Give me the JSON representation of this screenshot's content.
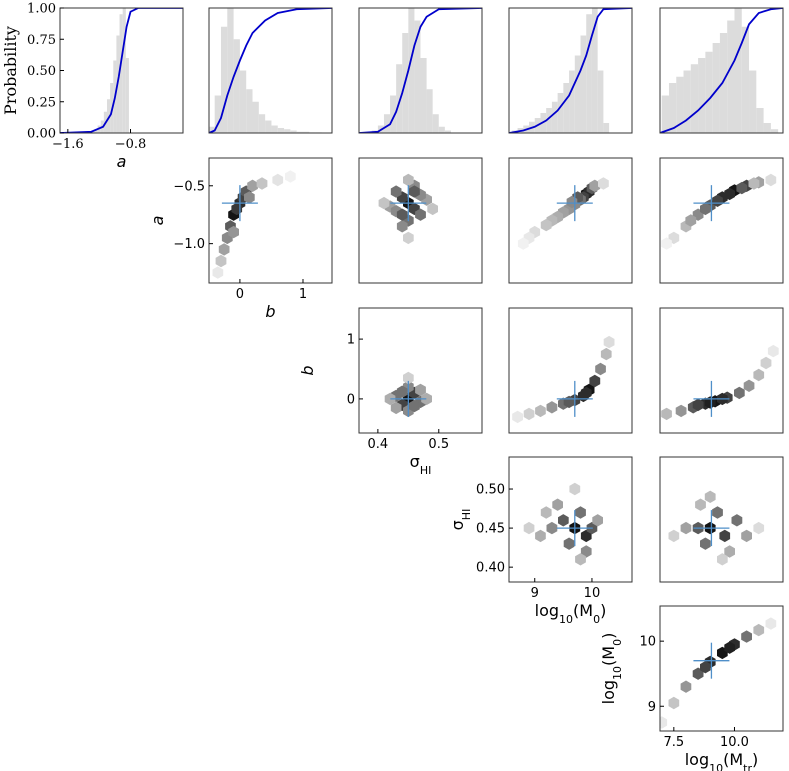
{
  "chart_data": [
    {
      "type": "histogram",
      "color": "#dcdcdc",
      "xlim": [
        -1.7,
        -0.13
      ],
      "ylim": [
        0,
        1
      ],
      "bins": [
        -1.3,
        -1.26,
        -1.22,
        -1.18,
        -1.14,
        -1.1,
        -1.06,
        -1.02,
        -0.98,
        -0.94,
        -0.9,
        -0.86,
        -0.82
      ],
      "counts": [
        0.01,
        0.03,
        0.06,
        0.1,
        0.17,
        0.27,
        0.4,
        0.58,
        0.78,
        0.95,
        1.0,
        0.6
      ],
      "series": [
        {
          "color": "#0000cc",
          "x": [
            -1.7,
            -1.3,
            -1.15,
            -1.05,
            -1.0,
            -0.95,
            -0.9,
            -0.85,
            -0.8,
            -0.7,
            -0.13
          ],
          "values": [
            0,
            0.01,
            0.05,
            0.15,
            0.28,
            0.45,
            0.65,
            0.85,
            0.97,
            1,
            1
          ]
        }
      ],
      "xticks": [
        {
          "value": -1.6,
          "label": "−1.6"
        },
        {
          "value": -0.8,
          "label": "−0.8"
        }
      ],
      "yticks": [
        {
          "value": 0,
          "label": "0.00"
        },
        {
          "value": 0.25,
          "label": "0.25"
        },
        {
          "value": 0.5,
          "label": "0.50"
        },
        {
          "value": 0.75,
          "label": "0.75"
        },
        {
          "value": 1,
          "label": "1.00"
        }
      ],
      "xlabel": "a",
      "ylabel": "Probability"
    },
    {
      "type": "histogram",
      "color": "#dcdcdc",
      "xlim": [
        -0.49,
        1.46
      ],
      "ylim": [
        0,
        1
      ],
      "bins": [
        -0.5,
        -0.4,
        -0.3,
        -0.2,
        -0.1,
        0,
        0.1,
        0.2,
        0.3,
        0.4,
        0.5,
        0.6,
        0.7,
        0.8,
        0.9,
        1.0,
        1.1,
        1.2,
        1.3
      ],
      "counts": [
        0.05,
        0.3,
        0.85,
        1.0,
        0.75,
        0.5,
        0.35,
        0.25,
        0.15,
        0.1,
        0.06,
        0.04,
        0.03,
        0.02,
        0.01,
        0.01,
        0.005,
        0.005
      ],
      "series": [
        {
          "color": "#0000cc",
          "x": [
            -0.49,
            -0.4,
            -0.3,
            -0.2,
            -0.1,
            0,
            0.1,
            0.2,
            0.4,
            0.6,
            0.9,
            1.46
          ],
          "values": [
            0,
            0.02,
            0.12,
            0.3,
            0.45,
            0.58,
            0.7,
            0.8,
            0.9,
            0.96,
            0.99,
            1
          ]
        }
      ]
    },
    {
      "type": "histogram",
      "color": "#dcdcdc",
      "xlim": [
        0.369,
        0.571
      ],
      "ylim": [
        0,
        1
      ],
      "bins": [
        0.39,
        0.4,
        0.41,
        0.42,
        0.43,
        0.44,
        0.45,
        0.46,
        0.47,
        0.48,
        0.49,
        0.5,
        0.51,
        0.52
      ],
      "counts": [
        0.02,
        0.06,
        0.15,
        0.3,
        0.55,
        0.8,
        1.0,
        0.9,
        0.6,
        0.35,
        0.15,
        0.05,
        0.02
      ],
      "series": [
        {
          "color": "#0000cc",
          "x": [
            0.369,
            0.4,
            0.42,
            0.43,
            0.44,
            0.45,
            0.46,
            0.47,
            0.48,
            0.5,
            0.571
          ],
          "values": [
            0,
            0.01,
            0.07,
            0.17,
            0.32,
            0.5,
            0.7,
            0.85,
            0.93,
            0.99,
            1
          ]
        }
      ]
    },
    {
      "type": "histogram",
      "color": "#dcdcdc",
      "xlim": [
        8.55,
        10.7
      ],
      "ylim": [
        0,
        1
      ],
      "bins": [
        8.6,
        8.7,
        8.8,
        8.9,
        9.0,
        9.1,
        9.2,
        9.3,
        9.4,
        9.5,
        9.6,
        9.7,
        9.8,
        9.9,
        10.0,
        10.1,
        10.2,
        10.3
      ],
      "counts": [
        0.02,
        0.04,
        0.06,
        0.09,
        0.12,
        0.16,
        0.2,
        0.25,
        0.32,
        0.4,
        0.5,
        0.62,
        0.78,
        0.95,
        1.0,
        0.5,
        0.08
      ],
      "series": [
        {
          "color": "#0000cc",
          "x": [
            8.55,
            8.8,
            9.0,
            9.2,
            9.4,
            9.6,
            9.8,
            9.9,
            10.0,
            10.1,
            10.2,
            10.7
          ],
          "values": [
            0,
            0.02,
            0.05,
            0.1,
            0.18,
            0.3,
            0.5,
            0.62,
            0.78,
            0.93,
            0.99,
            1
          ]
        }
      ]
    },
    {
      "type": "histogram",
      "color": "#dcdcdc",
      "xlim": [
        6.93,
        12.0
      ],
      "ylim": [
        0,
        1
      ],
      "bins": [
        7.0,
        7.3,
        7.6,
        7.9,
        8.2,
        8.5,
        8.8,
        9.1,
        9.4,
        9.7,
        10.0,
        10.3,
        10.6,
        10.9,
        11.2,
        11.5,
        11.8
      ],
      "counts": [
        0.3,
        0.4,
        0.45,
        0.5,
        0.55,
        0.6,
        0.65,
        0.72,
        0.8,
        0.9,
        1.0,
        0.85,
        0.5,
        0.2,
        0.08,
        0.03
      ],
      "series": [
        {
          "color": "#0000cc",
          "x": [
            6.93,
            7.5,
            8.0,
            8.5,
            9.0,
            9.5,
            10.0,
            10.3,
            10.6,
            11.0,
            11.5,
            12.0
          ],
          "values": [
            0,
            0.04,
            0.1,
            0.18,
            0.28,
            0.4,
            0.58,
            0.72,
            0.87,
            0.96,
            0.99,
            1
          ]
        }
      ]
    },
    {
      "type": "hexbin",
      "truth_color": "#4f8fc9",
      "xlim": [
        -0.49,
        1.46
      ],
      "ylim": [
        -1.34,
        -0.26
      ],
      "truth": [
        0,
        -0.65
      ],
      "x": [
        -0.1,
        0,
        0.05,
        -0.15,
        0.1,
        -0.2,
        -0.25,
        0.2,
        -0.3,
        0.35,
        0.6,
        -0.05,
        0.15,
        -0.1,
        0.8,
        -0.35
      ],
      "y": [
        -0.75,
        -0.65,
        -0.6,
        -0.85,
        -0.55,
        -0.95,
        -1.05,
        -0.5,
        -1.15,
        -0.48,
        -0.45,
        -0.7,
        -0.6,
        -0.9,
        -0.42,
        -1.25
      ],
      "values": [
        1,
        0.9,
        0.8,
        0.7,
        0.7,
        0.5,
        0.4,
        0.4,
        0.25,
        0.25,
        0.12,
        0.85,
        0.5,
        0.45,
        0.06,
        0.1
      ],
      "xticks": [
        0,
        1
      ],
      "yticks": [
        {
          "value": -0.5,
          "label": "−0.5"
        },
        {
          "value": -1,
          "label": "−1.0"
        }
      ],
      "xlabel": "b",
      "ylabel": "a"
    },
    {
      "type": "hexbin",
      "truth_color": "#4f8fc9",
      "xlim": [
        0.369,
        0.571
      ],
      "ylim": [
        -1.34,
        -0.26
      ],
      "truth": [
        0.45,
        -0.65
      ],
      "x": [
        0.45,
        0.44,
        0.46,
        0.43,
        0.47,
        0.45,
        0.44,
        0.46,
        0.42,
        0.48,
        0.45,
        0.43,
        0.47,
        0.41,
        0.49,
        0.45,
        0.44,
        0.46
      ],
      "y": [
        -0.65,
        -0.6,
        -0.7,
        -0.55,
        -0.75,
        -0.8,
        -0.85,
        -0.5,
        -0.68,
        -0.62,
        -0.45,
        -0.72,
        -0.58,
        -0.65,
        -0.7,
        -0.95,
        -0.75,
        -0.55
      ],
      "values": [
        1,
        0.8,
        0.8,
        0.6,
        0.6,
        0.6,
        0.5,
        0.5,
        0.4,
        0.4,
        0.3,
        0.5,
        0.5,
        0.25,
        0.25,
        0.2,
        0.7,
        0.7
      ]
    },
    {
      "type": "hexbin",
      "truth_color": "#4f8fc9",
      "xlim": [
        8.55,
        10.7
      ],
      "ylim": [
        -1.34,
        -0.26
      ],
      "truth": [
        9.7,
        -0.65
      ],
      "x": [
        9.9,
        9.95,
        9.85,
        10.0,
        9.8,
        9.7,
        9.6,
        9.5,
        9.4,
        9.3,
        9.2,
        9.0,
        8.9,
        9.75,
        10.05,
        9.65,
        10.2,
        8.8
      ],
      "y": [
        -0.57,
        -0.55,
        -0.6,
        -0.52,
        -0.62,
        -0.66,
        -0.7,
        -0.73,
        -0.77,
        -0.8,
        -0.84,
        -0.9,
        -0.95,
        -0.6,
        -0.5,
        -0.64,
        -0.48,
        -1.0
      ],
      "values": [
        1,
        0.9,
        0.8,
        0.7,
        0.6,
        0.5,
        0.45,
        0.4,
        0.35,
        0.3,
        0.25,
        0.15,
        0.1,
        0.7,
        0.4,
        0.5,
        0.15,
        0.06
      ]
    },
    {
      "type": "hexbin",
      "truth_color": "#4f8fc9",
      "xlim": [
        6.93,
        12.0
      ],
      "ylim": [
        -1.34,
        -0.26
      ],
      "truth": [
        9.05,
        -0.65
      ],
      "x": [
        7.5,
        8.0,
        8.5,
        9.0,
        9.5,
        10.0,
        10.5,
        11.0,
        11.5,
        8.8,
        9.3,
        9.8,
        10.3,
        8.2,
        10.8,
        7.2
      ],
      "y": [
        -0.95,
        -0.85,
        -0.75,
        -0.67,
        -0.6,
        -0.54,
        -0.5,
        -0.47,
        -0.45,
        -0.7,
        -0.63,
        -0.57,
        -0.52,
        -0.8,
        -0.48,
        -1.0
      ],
      "values": [
        0.15,
        0.3,
        0.5,
        0.7,
        0.9,
        1,
        0.8,
        0.4,
        0.15,
        0.6,
        0.8,
        0.9,
        0.7,
        0.4,
        0.3,
        0.06
      ]
    },
    {
      "type": "hexbin",
      "truth_color": "#4f8fc9",
      "xlim": [
        0.369,
        0.571
      ],
      "ylim": [
        -0.57,
        1.52
      ],
      "truth": [
        0.45,
        0
      ],
      "x": [
        0.45,
        0.44,
        0.46,
        0.43,
        0.47,
        0.45,
        0.45,
        0.42,
        0.48,
        0.44,
        0.46,
        0.43,
        0.47,
        0.45
      ],
      "y": [
        0,
        -0.1,
        0.1,
        0.05,
        -0.05,
        0.2,
        -0.2,
        0,
        0,
        0.12,
        -0.12,
        -0.15,
        0.15,
        0.35
      ],
      "values": [
        1,
        0.8,
        0.8,
        0.6,
        0.6,
        0.5,
        0.5,
        0.35,
        0.35,
        0.6,
        0.6,
        0.4,
        0.4,
        0.2
      ],
      "xticks": [
        0.4,
        0.5
      ],
      "yticks": [
        0,
        1
      ],
      "xlabel": [
        "σ",
        "HI"
      ],
      "ylabel": "b"
    },
    {
      "type": "hexbin",
      "truth_color": "#4f8fc9",
      "xlim": [
        8.55,
        10.7
      ],
      "ylim": [
        -0.57,
        1.52
      ],
      "truth": [
        9.7,
        0
      ],
      "x": [
        8.7,
        8.9,
        9.1,
        9.3,
        9.5,
        9.7,
        9.85,
        9.95,
        10.05,
        10.15,
        10.25,
        10.3,
        9.6,
        9.9
      ],
      "y": [
        -0.3,
        -0.25,
        -0.2,
        -0.14,
        -0.08,
        -0.02,
        0.05,
        0.15,
        0.3,
        0.5,
        0.75,
        0.95,
        -0.05,
        0.1
      ],
      "values": [
        0.1,
        0.2,
        0.3,
        0.45,
        0.6,
        0.8,
        0.9,
        1,
        0.8,
        0.5,
        0.3,
        0.15,
        0.7,
        0.9
      ]
    },
    {
      "type": "hexbin",
      "truth_color": "#4f8fc9",
      "xlim": [
        6.93,
        12.0
      ],
      "ylim": [
        -0.57,
        1.52
      ],
      "truth": [
        9.05,
        0
      ],
      "x": [
        7.2,
        7.8,
        8.3,
        8.8,
        9.2,
        9.7,
        10.2,
        10.6,
        11.0,
        11.3,
        11.6,
        8.5,
        9.0,
        9.5
      ],
      "y": [
        -0.25,
        -0.2,
        -0.14,
        -0.08,
        -0.04,
        0.02,
        0.1,
        0.22,
        0.4,
        0.6,
        0.8,
        -0.1,
        -0.06,
        0
      ],
      "values": [
        0.3,
        0.45,
        0.7,
        0.9,
        1,
        0.8,
        0.6,
        0.45,
        0.3,
        0.2,
        0.1,
        0.8,
        0.95,
        0.9
      ]
    },
    {
      "type": "hexbin",
      "truth_color": "#4f8fc9",
      "xlim": [
        8.55,
        10.7
      ],
      "ylim": [
        0.381,
        0.541
      ],
      "truth": [
        9.7,
        0.45
      ],
      "x": [
        9.7,
        9.9,
        9.5,
        10.0,
        9.3,
        9.8,
        9.6,
        9.1,
        9.9,
        9.4,
        8.9,
        10.1,
        9.7,
        9.8,
        9.2
      ],
      "y": [
        0.45,
        0.44,
        0.46,
        0.45,
        0.45,
        0.47,
        0.43,
        0.44,
        0.42,
        0.48,
        0.45,
        0.46,
        0.5,
        0.41,
        0.47
      ],
      "values": [
        1,
        0.9,
        0.7,
        0.7,
        0.5,
        0.6,
        0.6,
        0.35,
        0.5,
        0.4,
        0.2,
        0.4,
        0.2,
        0.3,
        0.3
      ],
      "xticks": [
        9,
        10
      ],
      "yticks": [
        {
          "value": 0.4,
          "label": "0.40"
        },
        {
          "value": 0.45,
          "label": "0.45"
        },
        {
          "value": 0.5,
          "label": "0.50"
        }
      ],
      "xlabel": [
        "log",
        "10",
        "(M",
        "0",
        ")"
      ],
      "ylabel": [
        "σ",
        "HI"
      ]
    },
    {
      "type": "hexbin",
      "truth_color": "#4f8fc9",
      "xlim": [
        6.93,
        12.0
      ],
      "ylim": [
        0.381,
        0.541
      ],
      "truth": [
        9.05,
        0.45
      ],
      "x": [
        9.0,
        9.6,
        8.5,
        10.1,
        8.0,
        9.3,
        8.8,
        10.5,
        7.5,
        9.0,
        9.8,
        11.0,
        9.5,
        8.6
      ],
      "y": [
        0.45,
        0.44,
        0.45,
        0.46,
        0.45,
        0.47,
        0.43,
        0.44,
        0.44,
        0.49,
        0.42,
        0.45,
        0.41,
        0.48
      ],
      "values": [
        1,
        0.8,
        0.7,
        0.6,
        0.4,
        0.6,
        0.6,
        0.4,
        0.2,
        0.3,
        0.35,
        0.15,
        0.2,
        0.3
      ]
    },
    {
      "type": "hexbin",
      "truth_color": "#4f8fc9",
      "xlim": [
        6.93,
        12.0
      ],
      "ylim": [
        8.62,
        10.54
      ],
      "truth": [
        9.05,
        9.7
      ],
      "x": [
        7.0,
        7.5,
        8.0,
        8.5,
        9.0,
        9.5,
        10.0,
        10.5,
        11.0,
        11.5,
        8.8,
        9.8
      ],
      "y": [
        8.75,
        9.05,
        9.3,
        9.5,
        9.68,
        9.82,
        9.95,
        10.07,
        10.17,
        10.27,
        9.6,
        9.9
      ],
      "values": [
        0.1,
        0.25,
        0.45,
        0.7,
        0.9,
        1,
        0.9,
        0.6,
        0.3,
        0.1,
        0.8,
        0.95
      ],
      "xticks": [
        7.5,
        {
          "value": 10,
          "label": "10.0"
        }
      ],
      "yticks": [
        9,
        10
      ],
      "xlabel": [
        "log",
        "10",
        "(M",
        "tr",
        ")"
      ],
      "ylabel": [
        "log",
        "10",
        "(M",
        "0",
        ")"
      ]
    }
  ]
}
